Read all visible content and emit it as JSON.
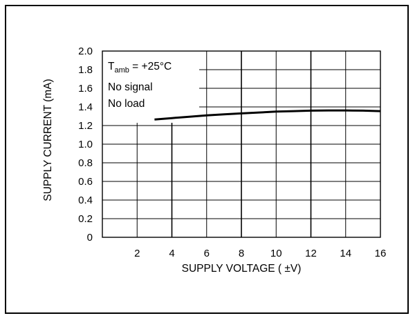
{
  "chart_data": {
    "type": "line",
    "xlabel": "SUPPLY VOLTAGE ( ±V)",
    "ylabel": "SUPPLY CURRENT (mA)",
    "xlim": [
      0,
      16
    ],
    "ylim": [
      0,
      2.0
    ],
    "x_ticks": [
      "2",
      "4",
      "6",
      "8",
      "10",
      "12",
      "14",
      "16"
    ],
    "y_ticks": [
      "0",
      "0.2",
      "0.4",
      "0.6",
      "0.8",
      "1.0",
      "1.2",
      "1.4",
      "1.6",
      "1.8",
      "2.0"
    ],
    "grid": true,
    "series": [
      {
        "x": [
          3,
          4,
          5,
          6,
          7,
          8,
          9,
          10,
          11,
          12,
          13,
          14,
          15,
          16
        ],
        "y": [
          1.265,
          1.28,
          1.295,
          1.31,
          1.32,
          1.33,
          1.34,
          1.35,
          1.355,
          1.36,
          1.362,
          1.362,
          1.36,
          1.355
        ]
      }
    ],
    "annotations": {
      "tamb_prefix": "T",
      "tamb_sub": "amb",
      "tamb_value": " = +25°C",
      "line2": "No signal",
      "line3": "No load"
    },
    "line_color": "#000000"
  }
}
